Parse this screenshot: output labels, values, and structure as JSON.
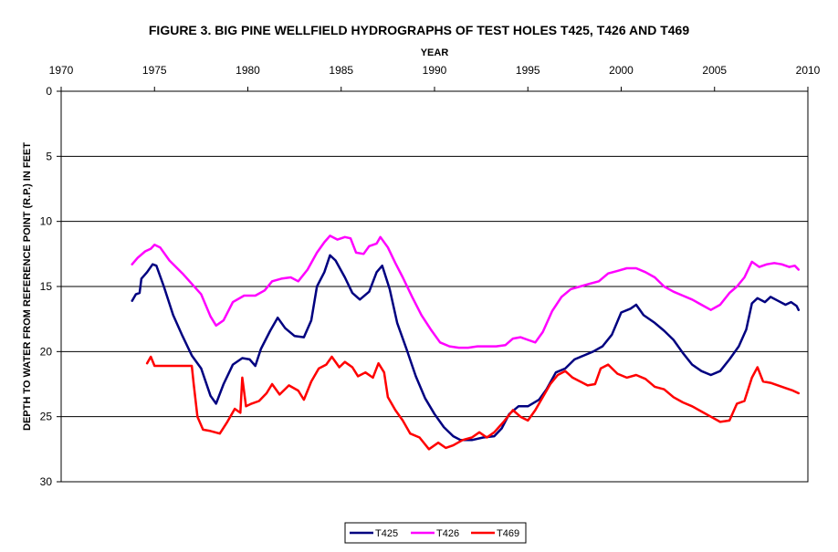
{
  "chart_data": {
    "type": "line",
    "title": "FIGURE 3. BIG PINE WELLFIELD HYDROGRAPHS OF TEST HOLES T425, T426 AND T469",
    "xlabel": "YEAR",
    "ylabel": "DEPTH TO WATER FROM REFERENCE POINT (R.P.) IN FEET",
    "xlim": [
      1970,
      2010
    ],
    "ylim": [
      0,
      30
    ],
    "y_inverted": true,
    "x_axis_position": "top",
    "x_ticks": [
      "1970",
      "1975",
      "1980",
      "1985",
      "1990",
      "1995",
      "2000",
      "2005",
      "2010"
    ],
    "y_ticks": [
      "0",
      "5",
      "10",
      "15",
      "20",
      "25",
      "30"
    ],
    "grid": "horizontal",
    "legend_position": "bottom",
    "series": [
      {
        "name": "T425",
        "color": "#000080",
        "points": [
          [
            1973.8,
            16.1
          ],
          [
            1974.0,
            15.6
          ],
          [
            1974.2,
            15.5
          ],
          [
            1974.3,
            14.4
          ],
          [
            1974.6,
            13.9
          ],
          [
            1974.9,
            13.3
          ],
          [
            1975.1,
            13.4
          ],
          [
            1975.5,
            15.0
          ],
          [
            1976.0,
            17.2
          ],
          [
            1976.5,
            18.8
          ],
          [
            1977.0,
            20.3
          ],
          [
            1977.5,
            21.3
          ],
          [
            1978.0,
            23.4
          ],
          [
            1978.3,
            24.0
          ],
          [
            1978.7,
            22.5
          ],
          [
            1979.2,
            21.0
          ],
          [
            1979.7,
            20.5
          ],
          [
            1980.1,
            20.6
          ],
          [
            1980.4,
            21.1
          ],
          [
            1980.7,
            19.8
          ],
          [
            1981.2,
            18.4
          ],
          [
            1981.6,
            17.4
          ],
          [
            1982.0,
            18.2
          ],
          [
            1982.5,
            18.8
          ],
          [
            1983.0,
            18.9
          ],
          [
            1983.4,
            17.6
          ],
          [
            1983.7,
            15.0
          ],
          [
            1984.1,
            13.9
          ],
          [
            1984.4,
            12.6
          ],
          [
            1984.7,
            13.0
          ],
          [
            1985.2,
            14.3
          ],
          [
            1985.6,
            15.5
          ],
          [
            1986.0,
            16.0
          ],
          [
            1986.5,
            15.4
          ],
          [
            1986.9,
            13.9
          ],
          [
            1987.2,
            13.4
          ],
          [
            1987.6,
            15.2
          ],
          [
            1988.0,
            17.8
          ],
          [
            1988.5,
            19.8
          ],
          [
            1989.0,
            21.9
          ],
          [
            1989.5,
            23.6
          ],
          [
            1990.0,
            24.8
          ],
          [
            1990.5,
            25.8
          ],
          [
            1991.0,
            26.5
          ],
          [
            1991.4,
            26.8
          ],
          [
            1992.0,
            26.8
          ],
          [
            1992.6,
            26.6
          ],
          [
            1993.2,
            26.5
          ],
          [
            1993.6,
            25.9
          ],
          [
            1994.0,
            24.8
          ],
          [
            1994.5,
            24.2
          ],
          [
            1995.0,
            24.2
          ],
          [
            1995.6,
            23.7
          ],
          [
            1996.0,
            22.9
          ],
          [
            1996.5,
            21.6
          ],
          [
            1997.0,
            21.3
          ],
          [
            1997.5,
            20.6
          ],
          [
            1998.0,
            20.3
          ],
          [
            1998.5,
            20.0
          ],
          [
            1999.0,
            19.6
          ],
          [
            1999.5,
            18.7
          ],
          [
            2000.0,
            17.0
          ],
          [
            2000.5,
            16.7
          ],
          [
            2000.8,
            16.4
          ],
          [
            2001.2,
            17.2
          ],
          [
            2001.8,
            17.8
          ],
          [
            2002.3,
            18.4
          ],
          [
            2002.8,
            19.1
          ],
          [
            2003.3,
            20.1
          ],
          [
            2003.8,
            21.0
          ],
          [
            2004.3,
            21.5
          ],
          [
            2004.8,
            21.8
          ],
          [
            2005.3,
            21.5
          ],
          [
            2005.8,
            20.6
          ],
          [
            2006.3,
            19.6
          ],
          [
            2006.7,
            18.3
          ],
          [
            2007.0,
            16.3
          ],
          [
            2007.3,
            15.9
          ],
          [
            2007.7,
            16.2
          ],
          [
            2008.0,
            15.8
          ],
          [
            2008.4,
            16.1
          ],
          [
            2008.8,
            16.4
          ],
          [
            2009.1,
            16.2
          ],
          [
            2009.4,
            16.5
          ],
          [
            2009.5,
            16.8
          ]
        ]
      },
      {
        "name": "T426",
        "color": "#ff00ff",
        "points": [
          [
            1973.8,
            13.3
          ],
          [
            1974.1,
            12.8
          ],
          [
            1974.5,
            12.3
          ],
          [
            1974.8,
            12.1
          ],
          [
            1975.0,
            11.8
          ],
          [
            1975.3,
            12.0
          ],
          [
            1975.8,
            13.0
          ],
          [
            1976.5,
            14.0
          ],
          [
            1977.0,
            14.8
          ],
          [
            1977.5,
            15.6
          ],
          [
            1978.0,
            17.3
          ],
          [
            1978.3,
            18.0
          ],
          [
            1978.7,
            17.6
          ],
          [
            1979.2,
            16.2
          ],
          [
            1979.8,
            15.7
          ],
          [
            1980.4,
            15.7
          ],
          [
            1980.9,
            15.3
          ],
          [
            1981.3,
            14.6
          ],
          [
            1981.8,
            14.4
          ],
          [
            1982.3,
            14.3
          ],
          [
            1982.7,
            14.6
          ],
          [
            1983.2,
            13.7
          ],
          [
            1983.7,
            12.4
          ],
          [
            1984.1,
            11.6
          ],
          [
            1984.4,
            11.1
          ],
          [
            1984.8,
            11.4
          ],
          [
            1985.2,
            11.2
          ],
          [
            1985.5,
            11.3
          ],
          [
            1985.8,
            12.4
          ],
          [
            1986.2,
            12.5
          ],
          [
            1986.5,
            11.9
          ],
          [
            1986.9,
            11.7
          ],
          [
            1987.1,
            11.2
          ],
          [
            1987.5,
            12.0
          ],
          [
            1987.9,
            13.2
          ],
          [
            1988.3,
            14.3
          ],
          [
            1988.8,
            15.8
          ],
          [
            1989.3,
            17.2
          ],
          [
            1989.8,
            18.3
          ],
          [
            1990.3,
            19.3
          ],
          [
            1990.8,
            19.6
          ],
          [
            1991.3,
            19.7
          ],
          [
            1991.8,
            19.7
          ],
          [
            1992.3,
            19.6
          ],
          [
            1992.8,
            19.6
          ],
          [
            1993.3,
            19.6
          ],
          [
            1993.8,
            19.5
          ],
          [
            1994.2,
            19.0
          ],
          [
            1994.6,
            18.9
          ],
          [
            1995.0,
            19.1
          ],
          [
            1995.4,
            19.3
          ],
          [
            1995.8,
            18.5
          ],
          [
            1996.3,
            16.9
          ],
          [
            1996.8,
            15.8
          ],
          [
            1997.3,
            15.2
          ],
          [
            1997.8,
            15.0
          ],
          [
            1998.3,
            14.8
          ],
          [
            1998.8,
            14.6
          ],
          [
            1999.3,
            14.0
          ],
          [
            1999.8,
            13.8
          ],
          [
            2000.3,
            13.6
          ],
          [
            2000.8,
            13.6
          ],
          [
            2001.3,
            13.9
          ],
          [
            2001.8,
            14.3
          ],
          [
            2002.3,
            15.0
          ],
          [
            2002.8,
            15.4
          ],
          [
            2003.3,
            15.7
          ],
          [
            2003.8,
            16.0
          ],
          [
            2004.3,
            16.4
          ],
          [
            2004.8,
            16.8
          ],
          [
            2005.3,
            16.4
          ],
          [
            2005.8,
            15.5
          ],
          [
            2006.2,
            15.0
          ],
          [
            2006.6,
            14.3
          ],
          [
            2007.0,
            13.1
          ],
          [
            2007.4,
            13.5
          ],
          [
            2007.8,
            13.3
          ],
          [
            2008.2,
            13.2
          ],
          [
            2008.6,
            13.3
          ],
          [
            2009.0,
            13.5
          ],
          [
            2009.3,
            13.4
          ],
          [
            2009.5,
            13.7
          ]
        ]
      },
      {
        "name": "T469",
        "color": "#ff0000",
        "points": [
          [
            1974.6,
            20.9
          ],
          [
            1974.8,
            20.4
          ],
          [
            1975.0,
            21.1
          ],
          [
            1976.0,
            21.1
          ],
          [
            1977.0,
            21.1
          ],
          [
            1977.1,
            22.5
          ],
          [
            1977.3,
            25.0
          ],
          [
            1977.6,
            26.0
          ],
          [
            1978.0,
            26.1
          ],
          [
            1978.5,
            26.3
          ],
          [
            1978.9,
            25.4
          ],
          [
            1979.3,
            24.4
          ],
          [
            1979.6,
            24.7
          ],
          [
            1979.7,
            22.0
          ],
          [
            1979.9,
            24.2
          ],
          [
            1980.2,
            24.0
          ],
          [
            1980.6,
            23.8
          ],
          [
            1981.0,
            23.2
          ],
          [
            1981.3,
            22.5
          ],
          [
            1981.7,
            23.3
          ],
          [
            1982.2,
            22.6
          ],
          [
            1982.7,
            23.0
          ],
          [
            1983.0,
            23.7
          ],
          [
            1983.4,
            22.3
          ],
          [
            1983.8,
            21.3
          ],
          [
            1984.2,
            21.0
          ],
          [
            1984.5,
            20.4
          ],
          [
            1984.9,
            21.2
          ],
          [
            1985.2,
            20.8
          ],
          [
            1985.6,
            21.2
          ],
          [
            1985.9,
            21.9
          ],
          [
            1986.3,
            21.6
          ],
          [
            1986.7,
            22.0
          ],
          [
            1987.0,
            20.9
          ],
          [
            1987.3,
            21.6
          ],
          [
            1987.5,
            23.5
          ],
          [
            1987.9,
            24.5
          ],
          [
            1988.3,
            25.3
          ],
          [
            1988.7,
            26.3
          ],
          [
            1989.2,
            26.6
          ],
          [
            1989.7,
            27.5
          ],
          [
            1990.2,
            27.0
          ],
          [
            1990.6,
            27.4
          ],
          [
            1991.0,
            27.2
          ],
          [
            1991.5,
            26.8
          ],
          [
            1992.0,
            26.6
          ],
          [
            1992.4,
            26.2
          ],
          [
            1992.8,
            26.6
          ],
          [
            1993.2,
            26.2
          ],
          [
            1993.7,
            25.4
          ],
          [
            1994.2,
            24.5
          ],
          [
            1994.6,
            25.0
          ],
          [
            1995.0,
            25.3
          ],
          [
            1995.4,
            24.5
          ],
          [
            1995.8,
            23.5
          ],
          [
            1996.2,
            22.5
          ],
          [
            1996.6,
            21.8
          ],
          [
            1997.0,
            21.5
          ],
          [
            1997.4,
            22.0
          ],
          [
            1997.8,
            22.3
          ],
          [
            1998.2,
            22.6
          ],
          [
            1998.6,
            22.5
          ],
          [
            1998.9,
            21.3
          ],
          [
            1999.3,
            21.0
          ],
          [
            1999.8,
            21.7
          ],
          [
            2000.3,
            22.0
          ],
          [
            2000.8,
            21.8
          ],
          [
            2001.3,
            22.1
          ],
          [
            2001.8,
            22.7
          ],
          [
            2002.3,
            22.9
          ],
          [
            2002.8,
            23.5
          ],
          [
            2003.3,
            23.9
          ],
          [
            2003.8,
            24.2
          ],
          [
            2004.3,
            24.6
          ],
          [
            2004.8,
            25.0
          ],
          [
            2005.3,
            25.4
          ],
          [
            2005.8,
            25.3
          ],
          [
            2006.2,
            24.0
          ],
          [
            2006.6,
            23.8
          ],
          [
            2007.0,
            22.0
          ],
          [
            2007.3,
            21.2
          ],
          [
            2007.6,
            22.3
          ],
          [
            2008.0,
            22.4
          ],
          [
            2008.4,
            22.6
          ],
          [
            2008.8,
            22.8
          ],
          [
            2009.2,
            23.0
          ],
          [
            2009.5,
            23.2
          ]
        ]
      }
    ]
  }
}
